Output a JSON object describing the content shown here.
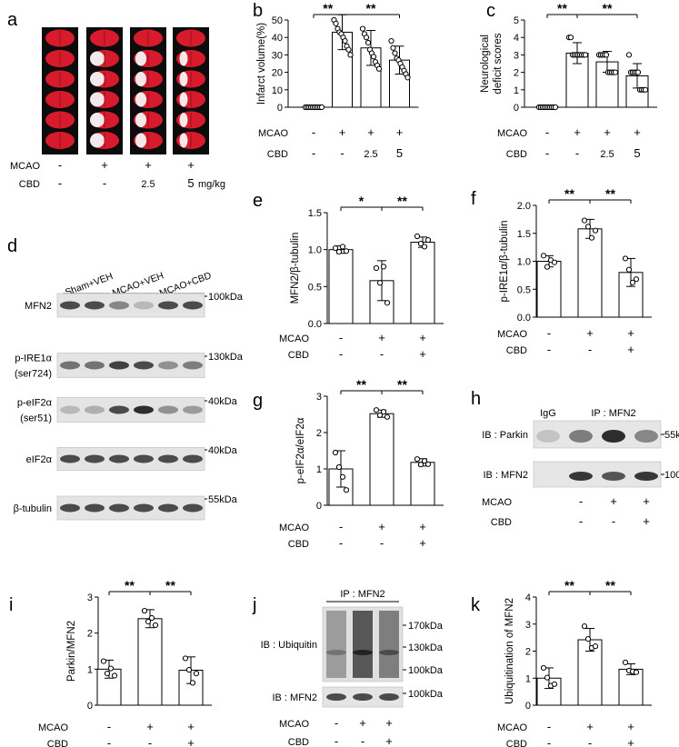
{
  "panel_letters": [
    "a",
    "b",
    "c",
    "d",
    "e",
    "f",
    "g",
    "h",
    "i",
    "j",
    "k"
  ],
  "treatment_labels": {
    "mcao": "MCAO",
    "cbd": "CBD",
    "unit": "mg/kg"
  },
  "panel_a": {
    "mcao": [
      "-",
      "+",
      "+",
      "+"
    ],
    "cbd": [
      "-",
      "-",
      "2.5",
      "5"
    ]
  },
  "panel_d": {
    "groups": [
      "Sham+VEH",
      "MCAO+VEH",
      "MCAO+CBD"
    ],
    "rows": [
      {
        "label": "MFN2",
        "marker": "100kDa",
        "bands": [
          0.8,
          0.8,
          0.5,
          0.25,
          0.8,
          0.8
        ]
      },
      {
        "label": "p-IRE1α\n(ser724)",
        "marker": "130kDa",
        "bands": [
          0.6,
          0.6,
          0.85,
          0.8,
          0.45,
          0.55
        ]
      },
      {
        "label": "p-eIF2α\n(ser51)",
        "marker": "40kDa",
        "bands": [
          0.25,
          0.3,
          0.8,
          0.95,
          0.45,
          0.4
        ]
      },
      {
        "label": "eIF2α",
        "marker": "40kDa",
        "bands": [
          0.8,
          0.8,
          0.8,
          0.8,
          0.8,
          0.8
        ]
      },
      {
        "label": "β-tubulin",
        "marker": "55kDa",
        "bands": [
          0.8,
          0.8,
          0.8,
          0.8,
          0.8,
          0.8
        ]
      }
    ]
  },
  "panel_h": {
    "igg_label": "IgG",
    "ip_label": "IP : MFN2",
    "rows": [
      {
        "label": "IB : Parkin",
        "marker": "55kDa",
        "bands": [
          0.2,
          0.55,
          0.95,
          0.5
        ]
      },
      {
        "label": "IB : MFN2",
        "marker": "100kDa",
        "bands": [
          0.0,
          0.9,
          0.75,
          0.9
        ]
      }
    ],
    "mcao": [
      "-",
      "+",
      "+"
    ],
    "cbd": [
      "-",
      "-",
      "+"
    ]
  },
  "panel_j": {
    "ip_label": "IP : MFN2",
    "smear_label": "IB : Ubiquitin",
    "smear_intensity": [
      0.45,
      0.9,
      0.65
    ],
    "markers": [
      "170kDa",
      "130kDa",
      "100kDa"
    ],
    "bottom_label": "IB : MFN2",
    "bottom_marker": "100kDa",
    "mcao": [
      "-",
      "+",
      "+"
    ],
    "cbd": [
      "-",
      "-",
      "+"
    ]
  },
  "chart_data": [
    {
      "panel": "b",
      "type": "bar",
      "ylabel": "Infarct volume(%)",
      "ylim": [
        0,
        50
      ],
      "yticks": [
        0,
        10,
        20,
        30,
        40,
        50
      ],
      "values": [
        0,
        43,
        34,
        27
      ],
      "errors": [
        0.5,
        10,
        10,
        8
      ],
      "points": [
        [
          0,
          0,
          0,
          0,
          0,
          0,
          0,
          0,
          0,
          0
        ],
        [
          50,
          48,
          45,
          43,
          42,
          40,
          38,
          35,
          33,
          30
        ],
        [
          45,
          42,
          40,
          37,
          33,
          31,
          29,
          26,
          24,
          22
        ],
        [
          38,
          34,
          31,
          28,
          27,
          25,
          23,
          21,
          19,
          17
        ]
      ],
      "mcao": [
        "-",
        "+",
        "+",
        "+"
      ],
      "cbd": [
        "-",
        "-",
        "2.5",
        "5"
      ],
      "sig": [
        {
          "from": 0,
          "to": 1,
          "text": "**",
          "level": 0
        },
        {
          "from": 1,
          "to": 3,
          "text": "**",
          "level": 0
        }
      ]
    },
    {
      "panel": "c",
      "type": "bar",
      "ylabel": "Neurological\ndeficit scores",
      "ylim": [
        0,
        5
      ],
      "yticks": [
        0,
        1,
        2,
        3,
        4,
        5
      ],
      "values": [
        0,
        3.1,
        2.6,
        1.8
      ],
      "errors": [
        0.1,
        0.6,
        0.6,
        0.7
      ],
      "points": [
        [
          0,
          0,
          0,
          0,
          0,
          0,
          0,
          0,
          0,
          0
        ],
        [
          4,
          4,
          3,
          3,
          3,
          3,
          3,
          3,
          3,
          3
        ],
        [
          3,
          3,
          3,
          3,
          3,
          2,
          2,
          2,
          2,
          2
        ],
        [
          3,
          2,
          2,
          2,
          2,
          2,
          1,
          1,
          1,
          1
        ]
      ],
      "mcao": [
        "-",
        "+",
        "+",
        "+"
      ],
      "cbd": [
        "-",
        "-",
        "2.5",
        "5"
      ],
      "sig": [
        {
          "from": 0,
          "to": 1,
          "text": "**",
          "level": 0
        },
        {
          "from": 1,
          "to": 3,
          "text": "**",
          "level": 0
        }
      ]
    },
    {
      "panel": "e",
      "type": "bar",
      "ylabel": "MFN2/β-tubulin",
      "ylim": [
        0,
        1.5
      ],
      "yticks": [
        0.0,
        0.5,
        1.0,
        1.5
      ],
      "values": [
        1.0,
        0.58,
        1.1
      ],
      "errors": [
        0.05,
        0.27,
        0.07
      ],
      "points": [
        [
          1.02,
          0.97,
          1.04,
          0.98
        ],
        [
          0.75,
          0.55,
          0.77,
          0.28
        ],
        [
          1.18,
          1.08,
          1.04,
          1.13
        ]
      ],
      "mcao": [
        "-",
        "+",
        "+"
      ],
      "cbd": [
        "-",
        "-",
        "+"
      ],
      "sig": [
        {
          "from": 0,
          "to": 1,
          "text": "*",
          "level": 0
        },
        {
          "from": 1,
          "to": 2,
          "text": "**",
          "level": 0
        }
      ]
    },
    {
      "panel": "f",
      "type": "bar",
      "ylabel": "p-IRE1α/β-tubulin",
      "ylim": [
        0,
        2.0
      ],
      "yticks": [
        0.0,
        0.5,
        1.0,
        1.5,
        2.0
      ],
      "values": [
        1.0,
        1.58,
        0.8
      ],
      "errors": [
        0.1,
        0.17,
        0.25
      ],
      "points": [
        [
          1.1,
          0.9,
          1.02,
          0.98
        ],
        [
          1.73,
          1.62,
          1.42,
          1.55
        ],
        [
          1.05,
          0.85,
          0.62,
          0.68
        ]
      ],
      "mcao": [
        "-",
        "+",
        "+"
      ],
      "cbd": [
        "-",
        "-",
        "+"
      ],
      "sig": [
        {
          "from": 0,
          "to": 1,
          "text": "**",
          "level": 0
        },
        {
          "from": 1,
          "to": 2,
          "text": "**",
          "level": 0
        }
      ]
    },
    {
      "panel": "g",
      "type": "bar",
      "ylabel": "p-eIF2α/eIF2α",
      "ylim": [
        0,
        3
      ],
      "yticks": [
        0,
        1,
        2,
        3
      ],
      "values": [
        1.0,
        2.52,
        1.18
      ],
      "errors": [
        0.5,
        0.1,
        0.1
      ],
      "points": [
        [
          1.45,
          1.05,
          0.78,
          0.42
        ],
        [
          2.62,
          2.48,
          2.57,
          2.43
        ],
        [
          1.27,
          1.12,
          1.22,
          1.13
        ]
      ],
      "mcao": [
        "-",
        "+",
        "+"
      ],
      "cbd": [
        "-",
        "-",
        "+"
      ],
      "sig": [
        {
          "from": 0,
          "to": 1,
          "text": "**",
          "level": 0
        },
        {
          "from": 1,
          "to": 2,
          "text": "**",
          "level": 0
        }
      ]
    },
    {
      "panel": "i",
      "type": "bar",
      "ylabel": "Parkin/MFN2",
      "ylim": [
        0,
        3
      ],
      "yticks": [
        0,
        1,
        2,
        3
      ],
      "values": [
        1.0,
        2.4,
        0.97
      ],
      "errors": [
        0.25,
        0.25,
        0.37
      ],
      "points": [
        [
          1.22,
          0.88,
          1.02,
          0.82
        ],
        [
          2.62,
          2.32,
          2.42,
          2.22
        ],
        [
          1.3,
          0.98,
          0.62,
          0.88
        ]
      ],
      "mcao": [
        "-",
        "+",
        "+"
      ],
      "cbd": [
        "-",
        "-",
        "+"
      ],
      "sig": [
        {
          "from": 0,
          "to": 1,
          "text": "**",
          "level": 0
        },
        {
          "from": 1,
          "to": 2,
          "text": "**",
          "level": 0
        }
      ]
    },
    {
      "panel": "k",
      "type": "bar",
      "ylabel": "Ubiquitination of MFN2",
      "ylim": [
        0,
        4
      ],
      "yticks": [
        0,
        1,
        2,
        3,
        4
      ],
      "values": [
        1.0,
        2.42,
        1.33
      ],
      "errors": [
        0.38,
        0.42,
        0.2
      ],
      "points": [
        [
          1.38,
          1.02,
          0.72,
          0.78
        ],
        [
          2.92,
          2.45,
          2.12,
          2.18
        ],
        [
          1.58,
          1.28,
          1.25,
          1.22
        ]
      ],
      "mcao": [
        "-",
        "+",
        "+"
      ],
      "cbd": [
        "-",
        "-",
        "+"
      ],
      "sig": [
        {
          "from": 0,
          "to": 1,
          "text": "**",
          "level": 0
        },
        {
          "from": 1,
          "to": 2,
          "text": "**",
          "level": 0
        }
      ]
    }
  ]
}
